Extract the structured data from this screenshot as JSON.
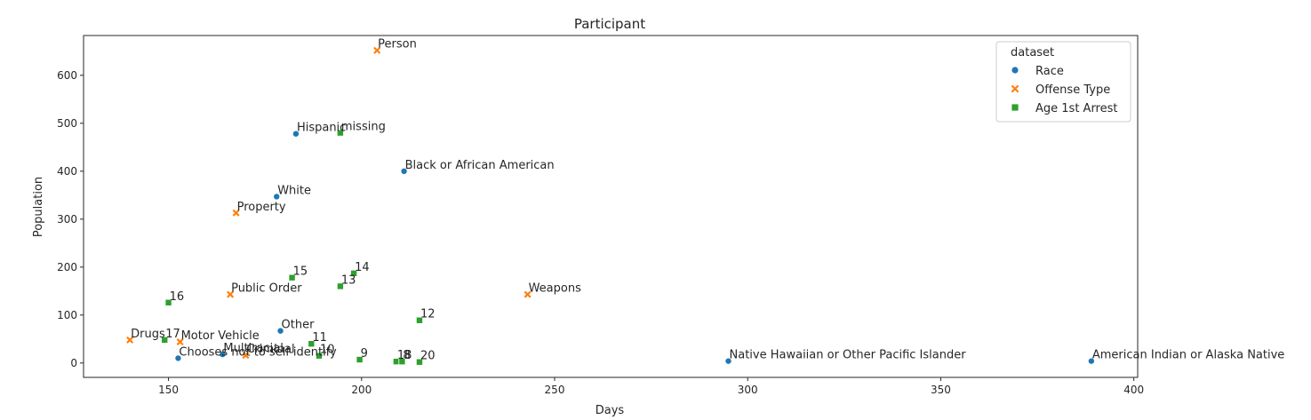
{
  "chart_data": {
    "type": "scatter",
    "title": "Participant",
    "xlabel": "Days",
    "ylabel": "Population",
    "xlim": [
      128,
      401
    ],
    "ylim": [
      -30,
      683
    ],
    "xticks": [
      150,
      200,
      250,
      300,
      350,
      400
    ],
    "yticks": [
      0,
      100,
      200,
      300,
      400,
      500,
      600
    ],
    "grid": false,
    "legend": {
      "title": "dataset",
      "placement": "top-right"
    },
    "series": [
      {
        "name": "Race",
        "marker": "circle",
        "color": "#1f77b4",
        "points": [
          {
            "x": 183,
            "y": 478,
            "label": "Hispanic"
          },
          {
            "x": 211,
            "y": 400,
            "label": "Black or African American"
          },
          {
            "x": 178,
            "y": 347,
            "label": "White"
          },
          {
            "x": 179,
            "y": 67,
            "label": "Other"
          },
          {
            "x": 164,
            "y": 18,
            "label": "Multiracial"
          },
          {
            "x": 152.5,
            "y": 10,
            "label": "Chooses not to self-identify"
          },
          {
            "x": 295,
            "y": 4,
            "label": "Native Hawaiian or Other Pacific Islander"
          },
          {
            "x": 389,
            "y": 4,
            "label": "American Indian or Alaska Native"
          }
        ]
      },
      {
        "name": "Offense Type",
        "marker": "x",
        "color": "#ff7f0e",
        "points": [
          {
            "x": 204,
            "y": 652,
            "label": "Person"
          },
          {
            "x": 167.5,
            "y": 313,
            "label": "Property"
          },
          {
            "x": 166,
            "y": 143,
            "label": "Public Order"
          },
          {
            "x": 243,
            "y": 143,
            "label": "Weapons"
          },
          {
            "x": 140,
            "y": 48,
            "label": "Drugs"
          },
          {
            "x": 153,
            "y": 44,
            "label": "Motor Vehicle"
          },
          {
            "x": 170,
            "y": 16,
            "label": "Criminal"
          }
        ]
      },
      {
        "name": "Age 1st Arrest",
        "marker": "square",
        "color": "#2ca02c",
        "points": [
          {
            "x": 194.5,
            "y": 480,
            "label": "missing"
          },
          {
            "x": 198,
            "y": 187,
            "label": "14"
          },
          {
            "x": 182,
            "y": 178,
            "label": "15"
          },
          {
            "x": 194.5,
            "y": 160,
            "label": "13"
          },
          {
            "x": 150,
            "y": 126,
            "label": "16"
          },
          {
            "x": 215,
            "y": 89,
            "label": "12"
          },
          {
            "x": 149,
            "y": 48,
            "label": "17"
          },
          {
            "x": 187,
            "y": 40,
            "label": "11"
          },
          {
            "x": 189,
            "y": 15,
            "label": "10"
          },
          {
            "x": 199.5,
            "y": 7,
            "label": "9"
          },
          {
            "x": 209,
            "y": 3,
            "label": "18"
          },
          {
            "x": 210.5,
            "y": 3,
            "label": "8"
          },
          {
            "x": 215,
            "y": 2,
            "label": "20"
          }
        ]
      }
    ]
  }
}
